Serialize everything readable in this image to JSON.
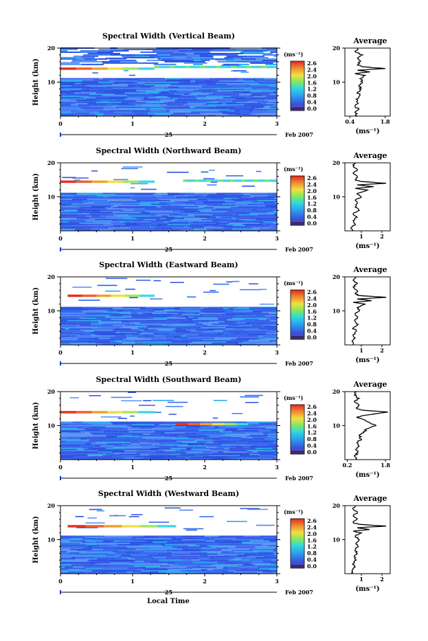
{
  "colorbar": {
    "unit": "(ms⁻¹)",
    "ticks_default": [
      "2.6",
      "2.4",
      "2.0",
      "1.6",
      "1.2",
      "0.8",
      "0.4",
      "0.0"
    ],
    "ticks_vertical": [
      "2.6",
      "2.4",
      "2.0",
      "1.6",
      "1.2",
      "0.8",
      "0.4",
      "0.0"
    ]
  },
  "common": {
    "ylabel": "Height (km)",
    "time_ticks": [
      "0",
      "1",
      "2",
      "3"
    ],
    "height_ticks": [
      "20",
      "10"
    ],
    "date_day": "25",
    "date_month_year": "Feb 2007",
    "avg_title": "Average",
    "avg_xlabel": "(ms⁻¹)",
    "xlabel_bottom": "Local Time"
  },
  "colors": {
    "background_fill": "#3a63f0",
    "red": "#e83020",
    "yellow": "#f0e040",
    "cyan": "#40d8e8"
  },
  "chart_data": [
    {
      "type": "heatmap",
      "title": "Spectral Width (Vertical Beam)",
      "ylim": [
        0,
        20
      ],
      "xlim": [
        0,
        3
      ],
      "avg_ticks": [
        "0.4",
        "1.8"
      ],
      "avg_xlim": [
        0.2,
        2.0
      ],
      "avg_profile": [
        [
          0.7,
          0
        ],
        [
          0.6,
          1
        ],
        [
          0.75,
          2
        ],
        [
          0.6,
          3
        ],
        [
          0.7,
          4
        ],
        [
          0.65,
          5
        ],
        [
          0.8,
          6
        ],
        [
          0.7,
          7
        ],
        [
          0.85,
          8
        ],
        [
          0.75,
          9
        ],
        [
          0.9,
          10
        ],
        [
          0.8,
          11
        ],
        [
          1.0,
          12
        ],
        [
          0.6,
          12.5
        ],
        [
          1.2,
          13
        ],
        [
          0.7,
          13.5
        ],
        [
          1.8,
          14
        ],
        [
          0.9,
          14.5
        ],
        [
          0.7,
          15
        ],
        [
          0.8,
          16
        ],
        [
          0.7,
          17
        ],
        [
          0.9,
          18
        ],
        [
          0.6,
          19
        ],
        [
          0.7,
          20
        ]
      ],
      "bands": [
        {
          "height": 14.0,
          "from": 0.0,
          "to": 1.3,
          "color": "warm"
        },
        {
          "height": 14.5,
          "from": 1.3,
          "to": 3.0,
          "color": "cyan"
        }
      ]
    },
    {
      "type": "heatmap",
      "title": "Spectral Width (Northward Beam)",
      "ylim": [
        0,
        20
      ],
      "xlim": [
        0,
        3
      ],
      "avg_ticks": [
        "1",
        "2"
      ],
      "avg_xlim": [
        0.2,
        2.4
      ],
      "avg_profile": [
        [
          0.6,
          0
        ],
        [
          0.5,
          1
        ],
        [
          0.7,
          2
        ],
        [
          0.6,
          3
        ],
        [
          0.8,
          4
        ],
        [
          0.6,
          5
        ],
        [
          0.9,
          6
        ],
        [
          0.7,
          7
        ],
        [
          0.8,
          8
        ],
        [
          0.7,
          9
        ],
        [
          1.0,
          10
        ],
        [
          0.8,
          11
        ],
        [
          1.3,
          12
        ],
        [
          0.7,
          12.5
        ],
        [
          1.6,
          13
        ],
        [
          0.8,
          13.5
        ],
        [
          2.2,
          14
        ],
        [
          1.0,
          14.5
        ],
        [
          0.7,
          15
        ],
        [
          0.8,
          16
        ],
        [
          0.6,
          17
        ],
        [
          0.8,
          18
        ],
        [
          0.6,
          19
        ],
        [
          0.7,
          20
        ]
      ],
      "bands": [
        {
          "height": 14.5,
          "from": 0.0,
          "to": 1.3,
          "color": "warm"
        },
        {
          "height": 14.8,
          "from": 1.7,
          "to": 3.0,
          "color": "cyan"
        }
      ]
    },
    {
      "type": "heatmap",
      "title": "Spectral Width (Eastward Beam)",
      "ylim": [
        0,
        20
      ],
      "xlim": [
        0,
        3
      ],
      "avg_ticks": [
        "1",
        "2"
      ],
      "avg_xlim": [
        0.2,
        2.4
      ],
      "avg_profile": [
        [
          0.6,
          0
        ],
        [
          0.55,
          1
        ],
        [
          0.7,
          2
        ],
        [
          0.6,
          3
        ],
        [
          0.75,
          4
        ],
        [
          0.6,
          5
        ],
        [
          0.85,
          6
        ],
        [
          0.7,
          7
        ],
        [
          0.8,
          8
        ],
        [
          0.7,
          9
        ],
        [
          0.9,
          10
        ],
        [
          0.8,
          11
        ],
        [
          1.2,
          12
        ],
        [
          0.6,
          12.5
        ],
        [
          1.5,
          13
        ],
        [
          0.8,
          13.5
        ],
        [
          2.2,
          14
        ],
        [
          0.9,
          14.5
        ],
        [
          0.7,
          15
        ],
        [
          0.8,
          16
        ],
        [
          0.6,
          17
        ],
        [
          0.8,
          18
        ],
        [
          0.6,
          19
        ],
        [
          0.7,
          20
        ]
      ],
      "bands": [
        {
          "height": 14.5,
          "from": 0.1,
          "to": 1.3,
          "color": "warm"
        }
      ]
    },
    {
      "type": "heatmap",
      "title": "Spectral Width (Southward Beam)",
      "ylim": [
        0,
        20
      ],
      "xlim": [
        0,
        3
      ],
      "avg_ticks": [
        "0.2",
        "1.8"
      ],
      "avg_xlim": [
        0.1,
        2.0
      ],
      "avg_profile": [
        [
          0.6,
          0
        ],
        [
          0.5,
          1
        ],
        [
          0.65,
          2
        ],
        [
          0.55,
          3
        ],
        [
          0.7,
          4
        ],
        [
          0.6,
          5
        ],
        [
          0.8,
          6
        ],
        [
          0.7,
          7
        ],
        [
          0.9,
          8
        ],
        [
          1.0,
          9
        ],
        [
          1.4,
          10
        ],
        [
          1.1,
          11
        ],
        [
          0.8,
          12
        ],
        [
          0.6,
          12.5
        ],
        [
          0.9,
          13
        ],
        [
          1.4,
          13.5
        ],
        [
          1.9,
          14
        ],
        [
          0.9,
          14.5
        ],
        [
          0.6,
          15
        ],
        [
          0.7,
          16
        ],
        [
          0.5,
          17
        ],
        [
          0.7,
          18
        ],
        [
          0.5,
          19
        ],
        [
          0.6,
          20
        ]
      ],
      "bands": [
        {
          "height": 14.0,
          "from": 0.0,
          "to": 1.3,
          "color": "warm"
        },
        {
          "height": 10.5,
          "from": 1.6,
          "to": 2.6,
          "color": "warm"
        }
      ]
    },
    {
      "type": "heatmap",
      "title": "Spectral Width (Westward Beam)",
      "ylim": [
        0,
        20
      ],
      "xlim": [
        0,
        3
      ],
      "avg_ticks": [
        "1",
        "2"
      ],
      "avg_xlim": [
        0.2,
        2.4
      ],
      "avg_profile": [
        [
          0.6,
          0
        ],
        [
          0.55,
          1
        ],
        [
          0.7,
          2
        ],
        [
          0.6,
          3
        ],
        [
          0.75,
          4
        ],
        [
          0.65,
          5
        ],
        [
          0.8,
          6
        ],
        [
          0.7,
          7
        ],
        [
          0.85,
          8
        ],
        [
          0.75,
          9
        ],
        [
          0.9,
          10
        ],
        [
          0.7,
          11
        ],
        [
          1.0,
          12
        ],
        [
          0.6,
          12.5
        ],
        [
          1.4,
          13
        ],
        [
          0.8,
          13.5
        ],
        [
          2.2,
          14
        ],
        [
          0.9,
          14.5
        ],
        [
          0.6,
          15
        ],
        [
          0.8,
          16
        ],
        [
          0.6,
          17
        ],
        [
          0.8,
          18
        ],
        [
          0.6,
          19
        ],
        [
          0.7,
          20
        ]
      ],
      "bands": [
        {
          "height": 14.0,
          "from": 0.1,
          "to": 1.6,
          "color": "warm"
        }
      ]
    }
  ]
}
